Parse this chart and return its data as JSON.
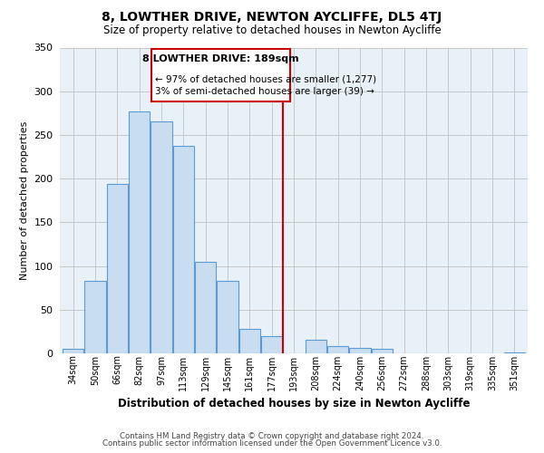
{
  "title": "8, LOWTHER DRIVE, NEWTON AYCLIFFE, DL5 4TJ",
  "subtitle": "Size of property relative to detached houses in Newton Aycliffe",
  "xlabel": "Distribution of detached houses by size in Newton Aycliffe",
  "ylabel": "Number of detached properties",
  "footer_line1": "Contains HM Land Registry data © Crown copyright and database right 2024.",
  "footer_line2": "Contains public sector information licensed under the Open Government Licence v3.0.",
  "bar_labels": [
    "34sqm",
    "50sqm",
    "66sqm",
    "82sqm",
    "97sqm",
    "113sqm",
    "129sqm",
    "145sqm",
    "161sqm",
    "177sqm",
    "193sqm",
    "208sqm",
    "224sqm",
    "240sqm",
    "256sqm",
    "272sqm",
    "288sqm",
    "303sqm",
    "319sqm",
    "335sqm",
    "351sqm"
  ],
  "bar_values": [
    5,
    83,
    194,
    277,
    265,
    237,
    105,
    83,
    28,
    20,
    0,
    16,
    8,
    6,
    5,
    0,
    0,
    0,
    0,
    0,
    1
  ],
  "bar_color": "#c9ddf0",
  "bar_edge_color": "#5b9bd5",
  "marker_label": "8 LOWTHER DRIVE: 189sqm",
  "marker_sub1": "← 97% of detached houses are smaller (1,277)",
  "marker_sub2": "3% of semi-detached houses are larger (39) →",
  "marker_color": "#cc0000",
  "ylim": [
    0,
    350
  ],
  "yticks": [
    0,
    50,
    100,
    150,
    200,
    250,
    300,
    350
  ],
  "background_color": "#ffffff",
  "grid_color": "#c8c8c8"
}
